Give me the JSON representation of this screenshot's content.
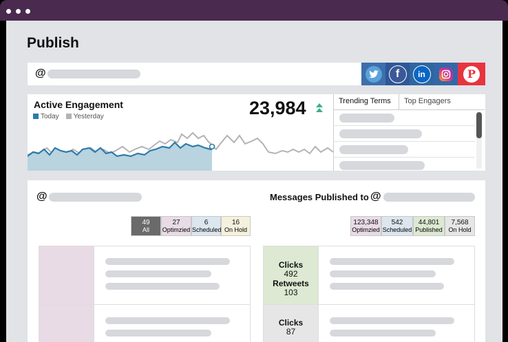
{
  "page": {
    "title": "Publish"
  },
  "search": {
    "at_symbol": "@"
  },
  "social": [
    {
      "name": "Twitter",
      "glyph": "t",
      "bg": "#3f6ea9",
      "circle": "#5aa2dc"
    },
    {
      "name": "Facebook",
      "glyph": "f",
      "bg": "#2e5798",
      "circle": "#3b5998"
    },
    {
      "name": "LinkedIn",
      "glyph": "in",
      "bg": "#2e6ea6",
      "circle": "#0a66c2"
    },
    {
      "name": "Instagram",
      "glyph": "◎",
      "bg": "#3467a8",
      "circle": "#d6338a"
    },
    {
      "name": "Pinterest",
      "glyph": "P",
      "bg": "#e8343f",
      "circle": "#ffffff"
    }
  ],
  "engagement": {
    "title": "Active Engagement",
    "legend_today": "Today",
    "legend_yesterday": "Yesterday",
    "count": "23,984",
    "today_color": "#2d7bab",
    "yesterday_color": "#b3b3b3",
    "trend_color": "#3fae8c"
  },
  "trending": {
    "tab_terms": "Trending Terms",
    "tab_engagers": "Top Engagers"
  },
  "lower": {
    "left_at": "@",
    "left_stats": [
      {
        "value": "49",
        "label": "All",
        "color": "#6a6a6a"
      },
      {
        "value": "27",
        "label": "Optimzied",
        "color": "#e8dbe6"
      },
      {
        "value": "6",
        "label": "Scheduled",
        "color": "#dbe6ef"
      },
      {
        "value": "16",
        "label": "On Hold",
        "color": "#f5f1dc"
      }
    ],
    "messages_title": "Messages Published to",
    "right_at": "@",
    "right_stats": [
      {
        "value": "123,348",
        "label": "Optimzied",
        "color": "#e8dbe6"
      },
      {
        "value": "542",
        "label": "Scheduled",
        "color": "#dbe6ef"
      },
      {
        "value": "44,801",
        "label": "Published",
        "color": "#dde9d2"
      },
      {
        "value": "7,568",
        "label": "On Hold",
        "color": "#e6e6e6"
      }
    ],
    "metrics": [
      {
        "label": "Clicks",
        "value": "492"
      },
      {
        "label": "Retweets",
        "value": "103"
      },
      {
        "label": "Clicks",
        "value": "87"
      }
    ]
  }
}
